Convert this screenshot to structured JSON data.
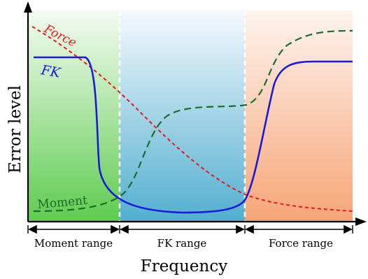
{
  "axes": {
    "y_label": "Error level",
    "x_label": "Frequency"
  },
  "curves": {
    "force": {
      "label": "Force",
      "color": "#e81818"
    },
    "fk": {
      "label": "FK",
      "color": "#1a1ad8"
    },
    "moment": {
      "label": "Moment",
      "color": "#1b6b2c"
    }
  },
  "ranges": [
    {
      "label": "Moment range",
      "fill_top": "#f4fbf2",
      "fill_bottom": "#5fcc4f"
    },
    {
      "label": "FK range",
      "fill_top": "#f5f9fd",
      "fill_bottom": "#52aed0"
    },
    {
      "label": "Force range",
      "fill_top": "#fdf4ee",
      "fill_bottom": "#f7a577"
    }
  ],
  "colors": {
    "axis": "#000000",
    "separator": "#ffffff"
  }
}
